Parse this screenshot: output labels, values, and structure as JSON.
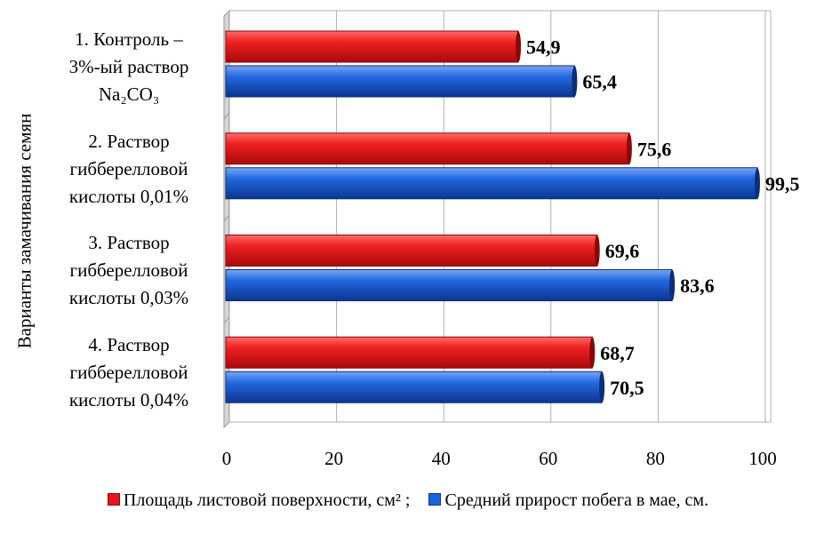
{
  "colors": {
    "series1": "#e8151c",
    "series1_dark": "#8a0608",
    "series2": "#1a62dc",
    "series2_dark": "#0a2e78",
    "grid": "#b0b0b0",
    "wall": "#d4d4d4"
  },
  "chart_data": {
    "type": "bar",
    "orientation": "horizontal",
    "title": "",
    "ylabel": "Варианты замачивания семян",
    "xlabel": "",
    "xlim": [
      0,
      100
    ],
    "xticks": [
      "0",
      "20",
      "40",
      "60",
      "80",
      "100"
    ],
    "grid": true,
    "legend_position": "bottom",
    "categories": [
      {
        "lines": [
          "1. Контроль –",
          "3%-ый раствор",
          "Na₂CO₃"
        ]
      },
      {
        "lines": [
          "2. Раствор",
          "гибберелловой",
          "кислоты 0,01%"
        ]
      },
      {
        "lines": [
          "3. Раствор",
          "гибберелловой",
          "кислоты 0,03%"
        ]
      },
      {
        "lines": [
          "4. Раствор",
          "гибберелловой",
          "кислоты 0,04%"
        ]
      }
    ],
    "series": [
      {
        "name": "Площадь листовой поверхности, см² ;",
        "values": [
          54.9,
          75.6,
          69.6,
          68.7
        ],
        "labels": [
          "54,9",
          "75,6",
          "69,6",
          "68,7"
        ]
      },
      {
        "name": "Средний прирост побега в мае, см.",
        "values": [
          65.4,
          99.5,
          83.6,
          70.5
        ],
        "labels": [
          "65,4",
          "99,5",
          "83,6",
          "70,5"
        ]
      }
    ]
  }
}
